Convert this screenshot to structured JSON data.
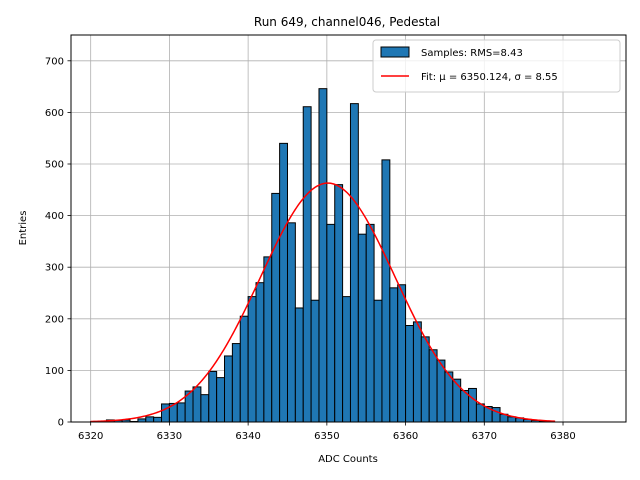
{
  "chart_data": {
    "type": "bar",
    "title": "Run 649, channel046, Pedestal",
    "xlabel": "ADC Counts",
    "ylabel": "Entries",
    "xlim": [
      6317.5,
      6388
    ],
    "ylim": [
      0,
      750
    ],
    "xticks": [
      6320,
      6330,
      6340,
      6350,
      6360,
      6370,
      6380
    ],
    "yticks": [
      0,
      100,
      200,
      300,
      400,
      500,
      600,
      700
    ],
    "grid": true,
    "legend_position": "top-right",
    "bin_width": 1,
    "histogram": {
      "name": "Samples: RMS=8.43",
      "color": "#1f77b4",
      "edgecolor": "#000000",
      "bin_starts": [
        6320,
        6321,
        6322,
        6323,
        6324,
        6325,
        6326,
        6327,
        6328,
        6329,
        6330,
        6331,
        6332,
        6333,
        6334,
        6335,
        6336,
        6337,
        6338,
        6339,
        6340,
        6341,
        6342,
        6343,
        6344,
        6345,
        6346,
        6347,
        6348,
        6349,
        6350,
        6351,
        6352,
        6353,
        6354,
        6355,
        6356,
        6357,
        6358,
        6359,
        6360,
        6361,
        6362,
        6363,
        6364,
        6365,
        6366,
        6367,
        6368,
        6369,
        6370,
        6371,
        6372,
        6373,
        6374,
        6375,
        6376,
        6377,
        6378,
        6379,
        6380,
        6381,
        6382,
        6383,
        6384
      ],
      "values": [
        1,
        1,
        4,
        3,
        4,
        1,
        6,
        10,
        9,
        35,
        36,
        37,
        60,
        68,
        53,
        98,
        86,
        128,
        152,
        205,
        243,
        270,
        320,
        443,
        540,
        386,
        221,
        611,
        236,
        646,
        383,
        460,
        243,
        617,
        364,
        383,
        236,
        508,
        260,
        266,
        187,
        194,
        165,
        140,
        120,
        97,
        83,
        61,
        65,
        35,
        30,
        28,
        15,
        10,
        8,
        5,
        3,
        2,
        0,
        0,
        0,
        0,
        0,
        0,
        0
      ]
    },
    "fit": {
      "name": "Fit: μ = 6350.124, σ = 8.55",
      "color": "#ff0000",
      "mu": 6350.124,
      "sigma": 8.55,
      "amplitude": 463,
      "x_range": [
        6320,
        6379
      ]
    }
  }
}
